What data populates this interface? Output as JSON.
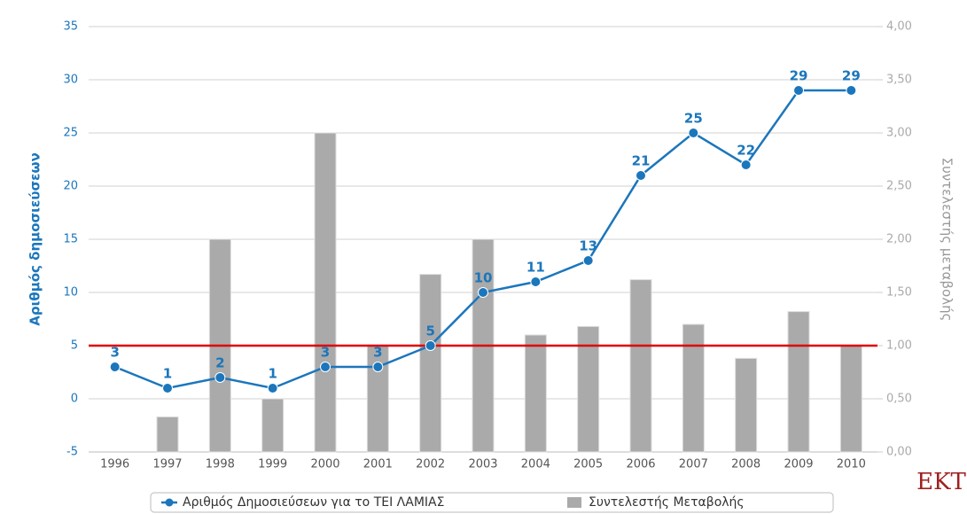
{
  "chart_data": {
    "type": "combo",
    "y_label": "Αριθμός δημοσιεύσεων",
    "y2_label": "Συντελεστής μεταβολής",
    "logo": "EKT",
    "categories": [
      "1996",
      "1997",
      "1998",
      "1999",
      "2000",
      "2001",
      "2002",
      "2003",
      "2004",
      "2005",
      "2006",
      "2007",
      "2008",
      "2009",
      "2010"
    ],
    "series": [
      {
        "name": "Αριθμός Δημοσιεύσεων για το ΤΕΙ ΛΑΜΙΑΣ",
        "type": "line",
        "color": "#1b76bc",
        "values": [
          3,
          1,
          2,
          1,
          3,
          3,
          5,
          10,
          11,
          13,
          21,
          25,
          22,
          29,
          29
        ]
      },
      {
        "name": "Συντελεστής Μεταβολής",
        "type": "bar",
        "axis": "y2",
        "color": "#aaaaaa",
        "values": [
          null,
          0.33,
          2.0,
          0.5,
          3.0,
          1.0,
          1.67,
          2.0,
          1.1,
          1.18,
          1.62,
          1.2,
          0.88,
          1.32,
          1.0
        ]
      }
    ],
    "reference_line": {
      "value": 5,
      "color": "#e00000"
    },
    "ylim": [
      -5,
      35
    ],
    "yticks": [
      -5,
      0,
      5,
      10,
      15,
      20,
      25,
      30,
      35
    ],
    "y2lim": [
      0,
      4
    ],
    "y2ticks": [
      {
        "value": 0,
        "label": "0,00"
      },
      {
        "value": 0.5,
        "label": "0,50"
      },
      {
        "value": 1,
        "label": "1,00"
      },
      {
        "value": 1.5,
        "label": "1,50"
      },
      {
        "value": 2,
        "label": "2,00"
      },
      {
        "value": 2.5,
        "label": "2,50"
      },
      {
        "value": 3,
        "label": "3,00"
      },
      {
        "value": 3.5,
        "label": "3,50"
      },
      {
        "value": 4,
        "label": "4,00"
      }
    ],
    "grid": true
  }
}
